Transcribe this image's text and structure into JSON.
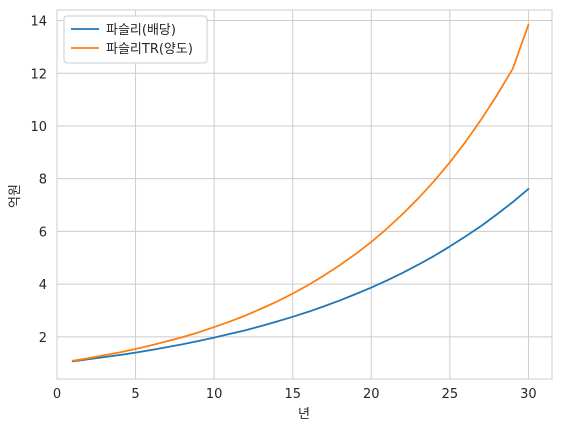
{
  "chart_data": {
    "type": "line",
    "title": "",
    "xlabel": "년",
    "ylabel": "억원",
    "xlim": [
      0,
      31.5
    ],
    "ylim": [
      0.4,
      14.4
    ],
    "xticks": [
      0,
      5,
      10,
      15,
      20,
      25,
      30
    ],
    "yticks": [
      2,
      4,
      6,
      8,
      10,
      12,
      14
    ],
    "grid": true,
    "legend_position": "top-left",
    "x": [
      1,
      2,
      3,
      4,
      5,
      6,
      7,
      8,
      9,
      10,
      11,
      12,
      13,
      14,
      15,
      16,
      17,
      18,
      19,
      20,
      21,
      22,
      23,
      24,
      25,
      26,
      27,
      28,
      29,
      30
    ],
    "series": [
      {
        "name": "파슬리(배당)",
        "color": "#1f77b4",
        "values": [
          1.07,
          1.15,
          1.23,
          1.31,
          1.4,
          1.5,
          1.61,
          1.72,
          1.84,
          1.97,
          2.11,
          2.25,
          2.41,
          2.58,
          2.76,
          2.95,
          3.16,
          3.38,
          3.62,
          3.87,
          4.14,
          4.43,
          4.74,
          5.07,
          5.43,
          5.81,
          6.21,
          6.65,
          7.11,
          7.61
        ]
      },
      {
        "name": "파슬리TR(양도)",
        "color": "#ff7f0e",
        "values": [
          1.09,
          1.19,
          1.3,
          1.41,
          1.54,
          1.68,
          1.83,
          1.99,
          2.17,
          2.37,
          2.58,
          2.81,
          3.07,
          3.34,
          3.64,
          3.97,
          4.33,
          4.72,
          5.14,
          5.6,
          6.11,
          6.66,
          7.26,
          7.91,
          8.62,
          9.4,
          10.25,
          11.17,
          12.17,
          13.84
        ]
      }
    ]
  }
}
